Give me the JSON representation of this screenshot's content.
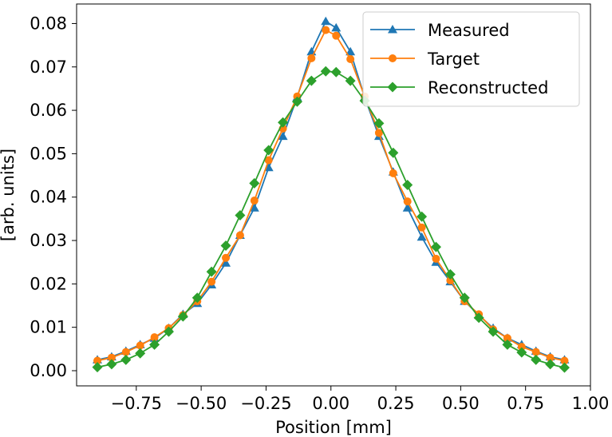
{
  "chart_data": {
    "type": "line",
    "title": "",
    "xlabel": "Position [mm]",
    "ylabel": "[arb. units]",
    "xlim": [
      -0.98,
      1.0
    ],
    "ylim": [
      -0.0035,
      0.0845
    ],
    "xticks": [
      -0.75,
      -0.5,
      -0.25,
      0.0,
      0.25,
      0.5,
      0.75,
      1.0
    ],
    "xtick_labels": [
      "−0.75",
      "−0.50",
      "−0.25",
      "0.00",
      "0.25",
      "0.50",
      "0.75",
      "1.00"
    ],
    "yticks": [
      0.0,
      0.01,
      0.02,
      0.03,
      0.04,
      0.05,
      0.06,
      0.07,
      0.08
    ],
    "ytick_labels": [
      "0.00",
      "0.01",
      "0.02",
      "0.03",
      "0.04",
      "0.05",
      "0.06",
      "0.07",
      "0.08"
    ],
    "grid": false,
    "legend_position": "top-right",
    "x": [
      -0.9,
      -0.845,
      -0.79,
      -0.735,
      -0.68,
      -0.625,
      -0.57,
      -0.515,
      -0.46,
      -0.405,
      -0.35,
      -0.295,
      -0.24,
      -0.185,
      -0.13,
      -0.075,
      -0.02,
      0.02,
      0.075,
      0.13,
      0.185,
      0.24,
      0.295,
      0.35,
      0.405,
      0.46,
      0.515,
      0.57,
      0.625,
      0.68,
      0.735,
      0.79,
      0.845,
      0.9
    ],
    "series": [
      {
        "name": "Measured",
        "color": "#1f77b4",
        "marker": "triangle",
        "values": [
          0.0025,
          0.0032,
          0.0045,
          0.006,
          0.0075,
          0.0098,
          0.013,
          0.0155,
          0.0198,
          0.0248,
          0.0312,
          0.0375,
          0.0468,
          0.054,
          0.063,
          0.0735,
          0.0805,
          0.079,
          0.0735,
          0.063,
          0.054,
          0.0458,
          0.0375,
          0.0308,
          0.025,
          0.0205,
          0.016,
          0.0128,
          0.0098,
          0.0075,
          0.006,
          0.0045,
          0.0032,
          0.0025
        ]
      },
      {
        "name": "Target",
        "color": "#ff7f0e",
        "marker": "circle",
        "values": [
          0.0023,
          0.003,
          0.0043,
          0.0058,
          0.0077,
          0.0098,
          0.0128,
          0.016,
          0.0205,
          0.026,
          0.0312,
          0.0392,
          0.0485,
          0.0558,
          0.0632,
          0.072,
          0.0785,
          0.0772,
          0.0718,
          0.0632,
          0.0548,
          0.0455,
          0.039,
          0.033,
          0.0258,
          0.0208,
          0.016,
          0.013,
          0.0095,
          0.0075,
          0.0055,
          0.0043,
          0.003,
          0.0023
        ]
      },
      {
        "name": "Reconstructed",
        "color": "#2ca02c",
        "marker": "diamond",
        "values": [
          0.0008,
          0.0015,
          0.0025,
          0.004,
          0.006,
          0.009,
          0.0125,
          0.0168,
          0.0228,
          0.0288,
          0.0358,
          0.0432,
          0.0508,
          0.0572,
          0.062,
          0.0668,
          0.069,
          0.0688,
          0.0668,
          0.0622,
          0.057,
          0.0502,
          0.0428,
          0.0355,
          0.0285,
          0.0222,
          0.0168,
          0.0122,
          0.009,
          0.006,
          0.0042,
          0.0025,
          0.0015,
          0.0007
        ]
      }
    ]
  }
}
